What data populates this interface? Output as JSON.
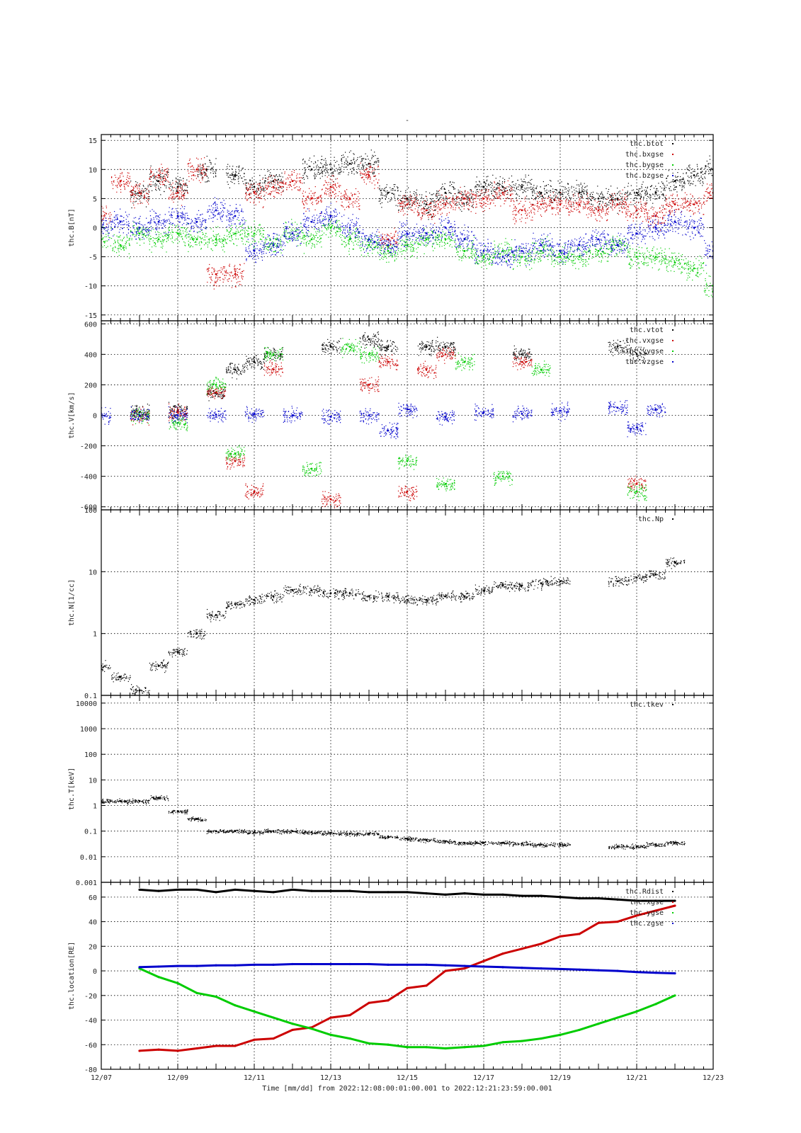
{
  "figure": {
    "title": "-",
    "xlabel": "Time [mm/dd]  from 2022:12:08:00:01:00.001  to  2022:12:21:23:59:00.001",
    "x_ticks": [
      "12/07",
      "12/09",
      "12/11",
      "12/13",
      "12/15",
      "12/17",
      "12/19",
      "12/21",
      "12/23"
    ]
  },
  "chart_data": [
    {
      "type": "scatter",
      "ylabel": "thc.B[nT]",
      "ylim": [
        -16,
        16
      ],
      "yticks": [
        15,
        10,
        5,
        0,
        -5,
        -10,
        -15
      ],
      "ytick_labels": [
        "15",
        "10",
        "5",
        "0",
        "-5",
        "-10",
        "-15"
      ],
      "log": false,
      "legend": "top-right",
      "series": [
        {
          "name": "thc.btot",
          "color": "#000000",
          "x": [
            "12/08",
            "12/08 12:00",
            "12/09",
            "12/09 18:00",
            "12/10 12:00",
            "12/11",
            "12/11 12:00",
            "12/12 12:00",
            "12/13",
            "12/13 12:00",
            "12/14",
            "12/14 12:00",
            "12/15",
            "12/15 12:00",
            "12/16",
            "12/16 12:00",
            "12/17",
            "12/17 12:00",
            "12/18",
            "12/18 12:00",
            "12/19",
            "12/19 12:00",
            "12/20",
            "12/20 12:00",
            "12/21",
            "12/21 12:00",
            "12/22",
            "12/22 12:00",
            "12/23"
          ],
          "y": [
            6,
            8,
            7,
            10,
            9,
            7,
            8,
            10,
            10,
            11,
            11,
            6,
            5,
            4,
            6,
            5,
            7,
            7,
            7,
            6,
            6,
            6,
            5,
            5,
            6,
            6,
            8,
            9,
            10
          ]
        },
        {
          "name": "thc.bxgse",
          "color": "#cc0000",
          "x": [
            "12/07",
            "12/07 12:00",
            "12/08",
            "12/08 12:00",
            "12/09",
            "12/09 12:00",
            "12/10",
            "12/10 12:00",
            "12/11",
            "12/11 12:00",
            "12/12",
            "12/12 12:00",
            "12/13",
            "12/13 12:00",
            "12/14",
            "12/14 12:00",
            "12/15",
            "12/15 12:00",
            "12/16",
            "12/16 12:00",
            "12/17",
            "12/17 12:00",
            "12/18",
            "12/18 12:00",
            "12/19",
            "12/19 12:00",
            "12/20",
            "12/20 12:00",
            "12/21",
            "12/21 12:00",
            "12/22",
            "12/22 12:00",
            "12/23"
          ],
          "y": [
            2,
            8,
            6,
            9,
            6,
            10,
            -8,
            -8,
            6,
            7,
            8,
            5,
            7,
            5,
            9,
            -2,
            4,
            3,
            4,
            5,
            5,
            6,
            3,
            4,
            4,
            4,
            3,
            4,
            3,
            2,
            4,
            4,
            6
          ]
        },
        {
          "name": "thc.bygse",
          "color": "#00cc00",
          "x": [
            "12/07",
            "12/07 12:00",
            "12/08",
            "12/08 12:00",
            "12/09",
            "12/09 12:00",
            "12/10",
            "12/10 12:00",
            "12/11",
            "12/11 12:00",
            "12/12",
            "12/12 12:00",
            "12/13",
            "12/13 12:00",
            "12/14",
            "12/14 12:00",
            "12/15",
            "12/15 12:00",
            "12/16",
            "12/16 12:00",
            "12/17",
            "12/17 12:00",
            "12/18",
            "12/18 12:00",
            "12/19",
            "12/19 12:00",
            "12/20",
            "12/20 12:00",
            "12/21",
            "12/21 12:00",
            "12/22",
            "12/22 12:00",
            "12/23"
          ],
          "y": [
            -2,
            -3,
            -1,
            -2,
            -1,
            -2,
            -2,
            -1,
            -1,
            -3,
            -1,
            -2,
            0,
            -2,
            -3,
            -4,
            -3,
            -2,
            -2,
            -4,
            -5,
            -4,
            -5,
            -4,
            -5,
            -5,
            -4,
            -3,
            -5,
            -5,
            -6,
            -7,
            -10
          ]
        },
        {
          "name": "thc.bzgse",
          "color": "#0000cc",
          "x": [
            "12/07",
            "12/07 12:00",
            "12/08",
            "12/08 12:00",
            "12/09",
            "12/09 12:00",
            "12/10",
            "12/10 12:00",
            "12/11",
            "12/11 12:00",
            "12/12",
            "12/12 12:00",
            "12/13",
            "12/13 12:00",
            "12/14",
            "12/14 12:00",
            "12/15",
            "12/15 12:00",
            "12/16",
            "12/16 12:00",
            "12/17",
            "12/17 12:00",
            "12/18",
            "12/18 12:00",
            "12/19",
            "12/19 12:00",
            "12/20",
            "12/20 12:00",
            "12/21",
            "12/21 12:00",
            "12/22",
            "12/22 12:00",
            "12/23"
          ],
          "y": [
            0,
            1,
            0,
            1,
            2,
            1,
            3,
            2,
            -4,
            -3,
            -1,
            1,
            2,
            0,
            -2,
            -3,
            -1,
            -1,
            0,
            -2,
            -4,
            -5,
            -4,
            -3,
            -4,
            -3,
            -2,
            -3,
            -1,
            0,
            1,
            0,
            -4
          ]
        }
      ]
    },
    {
      "type": "scatter",
      "ylabel": "thc.V[km/s]",
      "ylim": [
        -620,
        620
      ],
      "yticks": [
        600,
        400,
        200,
        0,
        -200,
        -400,
        -600
      ],
      "ytick_labels": [
        "600",
        "400",
        "200",
        "0",
        "-200",
        "-400",
        "-600"
      ],
      "log": false,
      "legend": "top-right",
      "series": [
        {
          "name": "thc.vtot",
          "color": "#000000",
          "x": [
            "12/08",
            "12/09",
            "12/10",
            "12/10 12:00",
            "12/11",
            "12/11 12:00",
            "12/13",
            "12/14",
            "12/14 12:00",
            "12/15 12:00",
            "12/16",
            "12/18",
            "12/20 12:00",
            "12/21"
          ],
          "y": [
            20,
            30,
            150,
            300,
            350,
            400,
            450,
            500,
            450,
            450,
            450,
            400,
            450,
            400
          ]
        },
        {
          "name": "thc.vxgse",
          "color": "#cc0000",
          "x": [
            "12/08",
            "12/09",
            "12/10",
            "12/10 12:00",
            "12/11",
            "12/11 12:00",
            "12/13",
            "12/14",
            "12/14 12:00",
            "12/15",
            "12/15 12:00",
            "12/16",
            "12/18",
            "12/21"
          ],
          "y": [
            0,
            20,
            150,
            -300,
            -500,
            300,
            -550,
            200,
            350,
            -500,
            300,
            400,
            350,
            -450
          ]
        },
        {
          "name": "thc.vygse",
          "color": "#00cc00",
          "x": [
            "12/08",
            "12/09",
            "12/10",
            "12/10 12:00",
            "12/11 12:00",
            "12/12 12:00",
            "12/13 12:00",
            "12/14",
            "12/15",
            "12/16",
            "12/16 12:00",
            "12/17 12:00",
            "12/18 12:00",
            "12/21"
          ],
          "y": [
            0,
            -50,
            200,
            -250,
            400,
            -350,
            450,
            400,
            -300,
            -450,
            350,
            -400,
            300,
            -500
          ]
        },
        {
          "name": "thc.vzgse",
          "color": "#0000cc",
          "x": [
            "12/07",
            "12/08",
            "12/09",
            "12/10",
            "12/11",
            "12/12",
            "12/13",
            "12/14",
            "12/14 12:00",
            "12/15",
            "12/16",
            "12/17",
            "12/18",
            "12/19",
            "12/20 12:00",
            "12/21",
            "12/21 12:00"
          ],
          "y": [
            0,
            0,
            0,
            5,
            10,
            0,
            -10,
            0,
            -100,
            40,
            -10,
            20,
            10,
            30,
            50,
            -80,
            40
          ]
        }
      ]
    },
    {
      "type": "scatter",
      "ylabel": "thc.N[1/cc]",
      "ylim": [
        0.1,
        100
      ],
      "yticks": [
        100,
        10,
        1,
        0.1
      ],
      "ytick_labels": [
        "100",
        "10",
        "1",
        "0.1"
      ],
      "log": true,
      "legend": "top-right",
      "series": [
        {
          "name": "thc.Np",
          "color": "#000000",
          "x": [
            "12/07",
            "12/07 12:00",
            "12/08",
            "12/08 12:00",
            "12/09",
            "12/09 12:00",
            "12/10",
            "12/10 12:00",
            "12/11",
            "12/11 12:00",
            "12/12",
            "12/12 12:00",
            "12/13",
            "12/13 12:00",
            "12/14",
            "12/14 12:00",
            "12/15",
            "12/15 12:00",
            "12/16",
            "12/16 12:00",
            "12/17",
            "12/17 12:00",
            "12/18",
            "12/18 12:00",
            "12/19",
            "12/20 12:00",
            "12/21",
            "12/21 12:00",
            "12/22"
          ],
          "y": [
            0.3,
            0.2,
            0.12,
            0.3,
            0.5,
            1,
            2,
            3,
            3.5,
            4,
            5,
            5,
            4.5,
            4.5,
            4,
            4,
            3.5,
            3.5,
            4,
            4,
            5,
            6,
            6,
            6.5,
            7,
            7,
            8,
            9,
            14
          ]
        }
      ]
    },
    {
      "type": "scatter",
      "ylabel": "thc.T[keV]",
      "ylim": [
        0.001,
        20000
      ],
      "yticks": [
        10000,
        1000,
        100,
        10,
        1,
        0.1,
        0.01,
        0.001
      ],
      "ytick_labels": [
        "10000",
        "1000",
        "100",
        "10",
        "1",
        "0.1",
        "0.01",
        "0.001"
      ],
      "log": true,
      "legend": "top-right",
      "series": [
        {
          "name": "thc.tkev",
          "color": "#000000",
          "x": [
            "12/07",
            "12/07 12:00",
            "12/08",
            "12/08 12:00",
            "12/09",
            "12/09 12:00",
            "12/10",
            "12/10 12:00",
            "12/11",
            "12/11 12:00",
            "12/12",
            "12/12 12:00",
            "12/13",
            "12/13 12:00",
            "12/14",
            "12/14 12:00",
            "12/15",
            "12/15 12:00",
            "12/16",
            "12/16 12:00",
            "12/17",
            "12/17 12:00",
            "12/18",
            "12/18 12:00",
            "12/19",
            "12/20 12:00",
            "12/21",
            "12/21 12:00",
            "12/22"
          ],
          "y": [
            1.5,
            1.5,
            1.5,
            2,
            0.6,
            0.3,
            0.1,
            0.1,
            0.09,
            0.1,
            0.1,
            0.09,
            0.085,
            0.08,
            0.08,
            0.06,
            0.05,
            0.045,
            0.04,
            0.035,
            0.035,
            0.035,
            0.033,
            0.03,
            0.03,
            0.025,
            0.025,
            0.03,
            0.035
          ]
        }
      ]
    },
    {
      "type": "line",
      "ylabel": "thc.location[RE]",
      "ylim": [
        -80,
        72
      ],
      "yticks": [
        60,
        40,
        20,
        0,
        -20,
        -40,
        -60,
        -80
      ],
      "ytick_labels": [
        "60",
        "40",
        "20",
        "0",
        "-20",
        "-40",
        "-60",
        "-80"
      ],
      "log": false,
      "legend": "top-right",
      "series": [
        {
          "name": "thc.Rdist",
          "color": "#000000",
          "x": [
            "12/08",
            "12/08 12:00",
            "12/09",
            "12/09 12:00",
            "12/10",
            "12/10 12:00",
            "12/11",
            "12/11 12:00",
            "12/12",
            "12/12 12:00",
            "12/13",
            "12/13 12:00",
            "12/14",
            "12/14 12:00",
            "12/15",
            "12/15 12:00",
            "12/16",
            "12/16 12:00",
            "12/17",
            "12/17 12:00",
            "12/18",
            "12/18 12:00",
            "12/19",
            "12/19 12:00",
            "12/20",
            "12/20 12:00",
            "12/21",
            "12/21 12:00",
            "12/22"
          ],
          "y": [
            66,
            65,
            66,
            66,
            64,
            66,
            65,
            64,
            66,
            65,
            65,
            65,
            64,
            64,
            64,
            63,
            62,
            63,
            62,
            62,
            61,
            61,
            60,
            59,
            59,
            58,
            57,
            57,
            57
          ]
        },
        {
          "name": "thc.xgse",
          "color": "#cc0000",
          "x": [
            "12/08",
            "12/08 12:00",
            "12/09",
            "12/09 12:00",
            "12/10",
            "12/10 12:00",
            "12/11",
            "12/11 12:00",
            "12/12",
            "12/12 12:00",
            "12/13",
            "12/13 12:00",
            "12/14",
            "12/14 12:00",
            "12/15",
            "12/15 12:00",
            "12/16",
            "12/16 12:00",
            "12/17",
            "12/17 12:00",
            "12/18",
            "12/18 12:00",
            "12/19",
            "12/19 12:00",
            "12/20",
            "12/20 12:00",
            "12/21",
            "12/21 12:00",
            "12/22"
          ],
          "y": [
            -65,
            -64,
            -65,
            -63,
            -61,
            -61,
            -56,
            -55,
            -48,
            -46,
            -38,
            -36,
            -26,
            -24,
            -14,
            -12,
            0,
            2,
            8,
            14,
            18,
            22,
            28,
            30,
            39,
            40,
            45,
            49,
            53
          ]
        },
        {
          "name": "thc.ygse",
          "color": "#00cc00",
          "x": [
            "12/08",
            "12/08 12:00",
            "12/09",
            "12/09 12:00",
            "12/10",
            "12/10 12:00",
            "12/11",
            "12/11 12:00",
            "12/12",
            "12/12 12:00",
            "12/13",
            "12/13 12:00",
            "12/14",
            "12/14 12:00",
            "12/15",
            "12/15 12:00",
            "12/16",
            "12/16 12:00",
            "12/17",
            "12/17 12:00",
            "12/18",
            "12/18 12:00",
            "12/19",
            "12/19 12:00",
            "12/20",
            "12/20 12:00",
            "12/21",
            "12/21 12:00",
            "12/22"
          ],
          "y": [
            2,
            -5,
            -10,
            -18,
            -21,
            -28,
            -33,
            -38,
            -43,
            -47,
            -52,
            -55,
            -59,
            -60,
            -62,
            -62,
            -63,
            -62,
            -61,
            -58,
            -57,
            -55,
            -52,
            -48,
            -43,
            -38,
            -33,
            -27,
            -20
          ]
        },
        {
          "name": "thc.zgse",
          "color": "#0000cc",
          "x": [
            "12/08",
            "12/08 12:00",
            "12/09",
            "12/09 12:00",
            "12/10",
            "12/10 12:00",
            "12/11",
            "12/11 12:00",
            "12/12",
            "12/12 12:00",
            "12/13",
            "12/13 12:00",
            "12/14",
            "12/14 12:00",
            "12/15",
            "12/15 12:00",
            "12/16",
            "12/16 12:00",
            "12/17",
            "12/17 12:00",
            "12/18",
            "12/18 12:00",
            "12/19",
            "12/19 12:00",
            "12/20",
            "12/20 12:00",
            "12/21",
            "12/21 12:00",
            "12/22"
          ],
          "y": [
            3,
            3.5,
            4,
            4,
            4.5,
            4.5,
            5,
            5,
            5.5,
            5.5,
            5.5,
            5.5,
            5.5,
            5,
            5,
            5,
            4.5,
            4,
            3.5,
            3,
            2.5,
            2,
            1.5,
            1,
            0.5,
            0,
            -1,
            -1.5,
            -2
          ]
        }
      ]
    }
  ]
}
